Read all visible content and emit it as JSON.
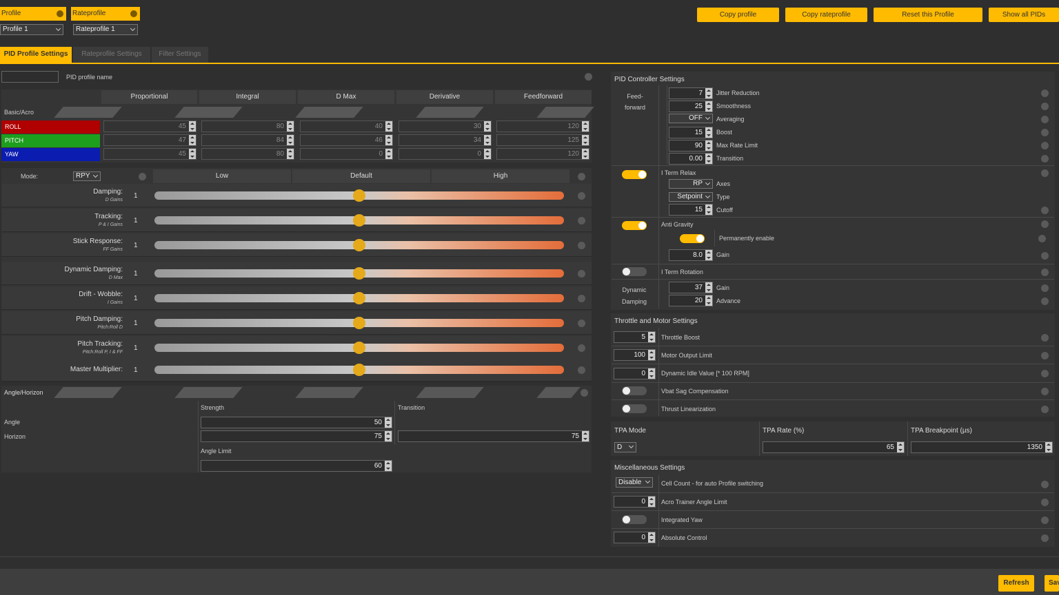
{
  "profile": {
    "label": "Profile",
    "value": "Profile 1"
  },
  "rateprofile": {
    "label": "Rateprofile",
    "value": "Rateprofile 1"
  },
  "toolbar": {
    "copy_profile": "Copy profile",
    "copy_rateprofile": "Copy rateprofile",
    "reset_profile": "Reset this Profile",
    "show_all_pids": "Show all PIDs"
  },
  "tabs": [
    "PID Profile Settings",
    "Rateprofile Settings",
    "Filter Settings"
  ],
  "pid_profile_name": {
    "label": "PID profile name",
    "value": ""
  },
  "pid_table": {
    "columns": [
      "Proportional",
      "Integral",
      "D Max",
      "Derivative",
      "Feedforward"
    ],
    "section": "Basic/Acro",
    "rows": [
      {
        "axis": "ROLL",
        "color": "#b00000",
        "values": [
          "45",
          "80",
          "40",
          "30",
          "120"
        ]
      },
      {
        "axis": "PITCH",
        "color": "#1d9e1d",
        "values": [
          "47",
          "84",
          "46",
          "34",
          "125"
        ]
      },
      {
        "axis": "YAW",
        "color": "#0b1cb0",
        "values": [
          "45",
          "80",
          "0",
          "0",
          "120"
        ]
      }
    ]
  },
  "sliders": {
    "mode_label": "Mode:",
    "mode_value": "RPY",
    "headers": [
      "Low",
      "Default",
      "High"
    ],
    "rows": [
      {
        "label": "Damping:",
        "sub": "D Gains",
        "value": "1",
        "fraction": 0.5
      },
      {
        "label": "Tracking:",
        "sub": "P & I Gains",
        "value": "1",
        "fraction": 0.5
      },
      {
        "label": "Stick Response:",
        "sub": "FF Gains",
        "value": "1",
        "fraction": 0.5
      },
      {
        "label": "Dynamic Damping:",
        "sub": "D Max",
        "value": "1",
        "fraction": 0.5
      },
      {
        "label": "Drift - Wobble:",
        "sub": "I Gains",
        "value": "1",
        "fraction": 0.5
      },
      {
        "label": "Pitch Damping:",
        "sub": "Pitch:Roll D",
        "value": "1",
        "fraction": 0.5
      },
      {
        "label": "Pitch Tracking:",
        "sub": "Pitch:Roll P, I & FF",
        "value": "1",
        "fraction": 0.5
      },
      {
        "label": "Master Multiplier:",
        "sub": "",
        "value": "1",
        "fraction": 0.5
      }
    ]
  },
  "angle_horizon": {
    "title": "Angle/Horizon",
    "strength_label": "Strength",
    "transition_label": "Transition",
    "angle_label": "Angle",
    "horizon_label": "Horizon",
    "angle_strength": "50",
    "horizon_strength": "75",
    "horizon_transition": "75",
    "angle_limit_label": "Angle Limit",
    "angle_limit": "60"
  },
  "pid_controller": {
    "title": "PID Controller Settings",
    "feedforward_label": "Feed-\nforward",
    "feedforward": [
      {
        "value": "7",
        "label": "Jitter Reduction"
      },
      {
        "value": "25",
        "label": "Smoothness"
      },
      {
        "value": "OFF",
        "label": "Averaging"
      },
      {
        "value": "15",
        "label": "Boost"
      },
      {
        "value": "90",
        "label": "Max Rate Limit"
      },
      {
        "value": "0.00",
        "label": "Transition"
      }
    ],
    "iterm_relax": {
      "label": "I Term Relax",
      "axes_value": "RP",
      "axes_label": "Axes",
      "type_value": "Setpoint",
      "type_label": "Type",
      "cutoff_value": "15",
      "cutoff_label": "Cutoff",
      "enabled": true
    },
    "anti_gravity": {
      "label": "Anti Gravity",
      "perm_label": "Permanently enable",
      "gain_value": "8.0",
      "gain_label": "Gain",
      "enabled": true,
      "perm_enabled": true
    },
    "iterm_rotation": {
      "label": "I Term Rotation",
      "enabled": false
    },
    "dynamic_damping": {
      "label": "Dynamic\nDamping",
      "gain_value": "37",
      "gain_label": "Gain",
      "advance_value": "20",
      "advance_label": "Advance"
    }
  },
  "throttle_motor": {
    "title": "Throttle and Motor Settings",
    "throttle_boost": {
      "value": "5",
      "label": "Throttle Boost"
    },
    "motor_output_limit": {
      "value": "100",
      "label": "Motor Output Limit"
    },
    "dynamic_idle": {
      "value": "0",
      "label": "Dynamic Idle Value [* 100 RPM]"
    },
    "vbat_sag": {
      "label": "Vbat Sag Compensation",
      "enabled": false
    },
    "thrust_linear": {
      "label": "Thrust Linearization",
      "enabled": false
    }
  },
  "tpa": {
    "mode_label": "TPA Mode",
    "rate_label": "TPA Rate (%)",
    "breakpoint_label": "TPA Breakpoint (µs)",
    "mode_value": "D",
    "rate_value": "65",
    "breakpoint_value": "1350"
  },
  "misc": {
    "title": "Miscellaneous Settings",
    "cell_count": {
      "value": "Disable",
      "label": "Cell Count - for auto Profile switching"
    },
    "acro_trainer": {
      "value": "0",
      "label": "Acro Trainer Angle Limit"
    },
    "integrated_yaw": {
      "label": "Integrated Yaw",
      "enabled": false
    },
    "absolute_control": {
      "value": "0",
      "label": "Absolute Control"
    }
  },
  "bottom": {
    "refresh": "Refresh",
    "save": "Save"
  },
  "colors": {
    "accent": "#ffbb00",
    "knob": "#e5a91a"
  }
}
